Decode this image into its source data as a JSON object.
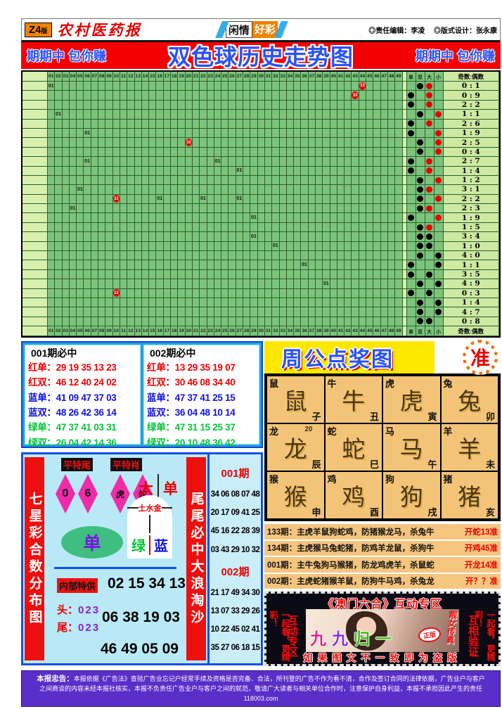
{
  "palette": {
    "banner_red": "#f40000",
    "title_blue": "#2a52f5",
    "grid_green": "#7cc47c",
    "grid_light": "#d8efad",
    "ball_red": "#e80000",
    "card_blue": "#2b9be8",
    "yellow": "#ffe800",
    "zodiac_tan": "#f3c478",
    "cyan": "#b9e9f6",
    "purple": "#5a2ec8",
    "pink": "#f02ba8"
  },
  "header": {
    "edition": "Z4",
    "edition_suffix": "版",
    "paper_name": "农村医药报",
    "center_left": "闲情",
    "center_right": "好彩",
    "editor": "◎责任编辑：李凌",
    "designer": "◎版式设计：张永康"
  },
  "banner": {
    "left": "期期中 包你赚",
    "title": "双色球历史走势图",
    "right": "期期中 包你赚"
  },
  "chart_data": {
    "type": "table",
    "title": "双色球历史走势图",
    "columns": [
      "01",
      "02",
      "03",
      "04",
      "05",
      "06",
      "07",
      "08",
      "09",
      "10",
      "11",
      "12",
      "13",
      "14",
      "15",
      "16",
      "17",
      "18",
      "19",
      "20",
      "21",
      "22",
      "23",
      "24",
      "25",
      "26",
      "27",
      "28",
      "29",
      "30",
      "31",
      "32",
      "33",
      "34",
      "35",
      "36",
      "37",
      "38",
      "39",
      "40",
      "41",
      "42",
      "43",
      "44",
      "45",
      "46",
      "47",
      "48",
      "49"
    ],
    "dot_headers": [
      "单",
      "双",
      "大",
      "小"
    ],
    "ratio_header": "奇数:偶数",
    "rows": [
      {
        "markers": [
          {
            "col": 1,
            "v": "01"
          },
          {
            "col": 44,
            "v": "33"
          }
        ],
        "odd_even": "双",
        "size": "大",
        "size_color": "red",
        "ratio": "0:1"
      },
      {
        "markers": [
          {
            "col": 43,
            "v": "33"
          }
        ],
        "odd_even": "单",
        "size": "大",
        "size_color": "red",
        "ratio": "0:9"
      },
      {
        "markers": [],
        "odd_even": "单",
        "size": "大",
        "size_color": "red",
        "ratio": "2:2"
      },
      {
        "markers": [
          {
            "col": 2,
            "v": "01"
          }
        ],
        "odd_even": "双",
        "size": "小",
        "size_color": "red",
        "ratio": "1:1"
      },
      {
        "markers": [],
        "odd_even": "单",
        "size": "大",
        "size_color": "red",
        "ratio": "2:6"
      },
      {
        "markers": [
          {
            "col": 6,
            "v": "01"
          }
        ],
        "odd_even": "单",
        "size": "小",
        "size_color": "red",
        "ratio": "1:9"
      },
      {
        "markers": [
          {
            "col": 20,
            "v": "33"
          }
        ],
        "odd_even": "双",
        "size": "小",
        "size_color": "red",
        "ratio": "2:5"
      },
      {
        "markers": [],
        "odd_even": "双",
        "size": "小",
        "size_color": "red",
        "ratio": "0:4"
      },
      {
        "markers": [
          {
            "col": 6,
            "v": "01"
          },
          {
            "col": 24,
            "v": "01"
          }
        ],
        "odd_even": "单",
        "size": "大",
        "size_color": "red",
        "ratio": "2:7"
      },
      {
        "markers": [
          {
            "col": 27,
            "v": "01"
          }
        ],
        "odd_even": "单",
        "size": "大",
        "size_color": "red",
        "ratio": "1:4"
      },
      {
        "markers": [],
        "odd_even": "双",
        "size": "小",
        "size_color": "red",
        "ratio": "1:2"
      },
      {
        "markers": [
          {
            "col": 5,
            "v": "01"
          }
        ],
        "odd_even": "双",
        "size": "大",
        "size_color": "red",
        "ratio": "3:1"
      },
      {
        "markers": [
          {
            "col": 10,
            "v": "33"
          },
          {
            "col": 16,
            "v": "01"
          },
          {
            "col": 22,
            "v": "01"
          },
          {
            "col": 27,
            "v": "01"
          }
        ],
        "odd_even": "双",
        "size": "小",
        "size_color": "red",
        "ratio": "2:2"
      },
      {
        "markers": [
          {
            "col": 4,
            "v": "01"
          }
        ],
        "odd_even": "双",
        "size": "大",
        "size_color": "red",
        "ratio": "2:3"
      },
      {
        "markers": [
          {
            "col": 29,
            "v": "01"
          }
        ],
        "odd_even": "单",
        "size": "小",
        "size_color": "red",
        "ratio": "1:9"
      },
      {
        "markers": [],
        "odd_even": "双",
        "size": "大",
        "size_color": "red",
        "ratio": "1:5"
      },
      {
        "markers": [
          {
            "col": 29,
            "v": "01"
          }
        ],
        "odd_even": "双",
        "size": "大",
        "size_color": "black",
        "ratio": "3:4"
      },
      {
        "markers": [
          {
            "col": 32,
            "v": "01"
          }
        ],
        "odd_even": "双",
        "size": "大",
        "size_color": "black",
        "ratio": "1:0"
      },
      {
        "markers": [],
        "odd_even": "双",
        "size": "小",
        "size_color": "black",
        "ratio": "4:0"
      },
      {
        "markers": [
          {
            "col": 36,
            "v": "01"
          }
        ],
        "odd_even": "单",
        "size": "小",
        "size_color": "black",
        "ratio": "1:1"
      },
      {
        "markers": [],
        "odd_even": "单",
        "size": "大",
        "size_color": "black",
        "ratio": "3:5"
      },
      {
        "markers": [
          {
            "col": 39,
            "v": "01"
          }
        ],
        "odd_even": "双",
        "size": "小",
        "size_color": "black",
        "ratio": "4:9"
      },
      {
        "markers": [
          {
            "col": 10,
            "v": "33"
          }
        ],
        "odd_even": "单",
        "size": "大",
        "size_color": "black",
        "ratio": "0:3"
      },
      {
        "markers": [],
        "odd_even": "双",
        "size": "小",
        "size_color": "black",
        "ratio": "1:4"
      },
      {
        "markers": [],
        "odd_even": "双",
        "size": "小",
        "size_color": "black",
        "ratio": "4:7"
      },
      {
        "markers": [],
        "odd_even": "双",
        "size": "大",
        "size_color": "black",
        "ratio": "0:8"
      }
    ]
  },
  "cards": [
    {
      "title": "001期必中",
      "lines": [
        {
          "label": "红单：",
          "nums": "29 19 35 13 23",
          "color": "red"
        },
        {
          "label": "红双：",
          "nums": "46 12 40 24 02",
          "color": "red"
        },
        {
          "label": "蓝单：",
          "nums": "41 09 47 37 03",
          "color": "blue"
        },
        {
          "label": "蓝双：",
          "nums": "48 26 42 36 14",
          "color": "blue"
        },
        {
          "label": "绿单：",
          "nums": "47 37 41 03 31",
          "color": "green"
        },
        {
          "label": "绿双：",
          "nums": "26 04 42 14 36",
          "color": "green"
        }
      ]
    },
    {
      "title": "002期必中",
      "lines": [
        {
          "label": "红单：",
          "nums": "13 29 35 19 07",
          "color": "red"
        },
        {
          "label": "红双：",
          "nums": "30 46 08 34 40",
          "color": "red"
        },
        {
          "label": "蓝单：",
          "nums": "47 37 41 25 15",
          "color": "blue"
        },
        {
          "label": "蓝双：",
          "nums": "36 04 48 10 14",
          "color": "blue"
        },
        {
          "label": "绿单：",
          "nums": "47 31 15 25 37",
          "color": "green"
        },
        {
          "label": "绿双：",
          "nums": "20 10 48 36 42",
          "color": "green"
        }
      ]
    }
  ],
  "zhougong": {
    "title": "周公点奖图",
    "badge": "准",
    "cells": [
      {
        "animal": "鼠",
        "branch": "子"
      },
      {
        "animal": "牛",
        "branch": "丑"
      },
      {
        "animal": "虎",
        "branch": "寅"
      },
      {
        "animal": "兔",
        "branch": "卯"
      },
      {
        "animal": "龙",
        "branch": "辰",
        "note": "20"
      },
      {
        "animal": "蛇",
        "branch": "巳"
      },
      {
        "animal": "马",
        "branch": "午"
      },
      {
        "animal": "羊",
        "branch": "未"
      },
      {
        "animal": "猴",
        "branch": "申"
      },
      {
        "animal": "鸡",
        "branch": "酉"
      },
      {
        "animal": "狗",
        "branch": "戌"
      },
      {
        "animal": "猪",
        "branch": "亥"
      }
    ]
  },
  "predictions": [
    {
      "period": "133期：",
      "text": "主虎羊鼠狗蛇鸡，防猪猴龙马，杀兔牛",
      "result": "开蛇13准"
    },
    {
      "period": "134期：",
      "text": "主虎猴马兔蛇猪，防鸡羊龙鼠，杀狗牛",
      "result": "开鸡45准"
    },
    {
      "period": "001期：",
      "text": "主牛兔狗马猴猪，防龙鸡虎羊，杀鼠蛇",
      "result": "开龙14准"
    },
    {
      "period": "002期：",
      "text": "主虎蛇猪猴羊鼠，防狗牛马鸡，杀兔龙",
      "result": "开？？准"
    }
  ],
  "qixing": {
    "left_banner": "七星彩合数分布图",
    "right_banner": "尾尾必中大浪淘沙",
    "tag1": "平特尾",
    "tag2": "平特肖",
    "diamonds": [
      "0",
      "6",
      "虎",
      "蛇"
    ],
    "big_pair": [
      "大",
      "单"
    ],
    "shield_top": "土水金",
    "shield_pair": [
      "绿",
      "蓝"
    ],
    "ellipse_char": "单",
    "special_label": "内部特供",
    "special_numbers": "02 15 34 13",
    "head_label": "头：",
    "head_value": "023",
    "tail_label": "尾：",
    "tail_value": "023",
    "numbers2": "06 38 19 03",
    "numbers3": "46 49 05 09"
  },
  "middle_column": {
    "groups": [
      {
        "title": "001期",
        "rows": [
          "34 06 08 07 48",
          "20 17 09 41 25",
          "45 16 22 28 39",
          "03 43 29 10 32"
        ]
      },
      {
        "title": "002期",
        "rows": [
          "21 17 49 34 30",
          "13 07 33 29 26",
          "10 22 45 02 41",
          "35 27 06 18 15"
        ]
      }
    ]
  },
  "macau": {
    "title": "《澳门六合》互动专区",
    "left_outer": "一起看，更精彩！",
    "left_inner": "互动专区",
    "right_inner": "互相验证",
    "right_outer": "一起看，更精彩！",
    "photo_text": "九九归一",
    "photo_text_colors": [
      "#e0218a",
      "#8a2be2",
      "#3cb818",
      "#52c41a"
    ],
    "photo_badge": "正版",
    "photo_caption": "靓女传真",
    "bottom_note": "如果图文不一致即为盗版"
  },
  "disclaimer": {
    "lead": "本报忠告：",
    "line1": "本报依据《广告法》查验广告业忘记户经常手续及资格是否完备、合法，所刊登的广告不作为看不清，合作及签订合同的法律依据，广告业户与客户",
    "line2": "之间商谈的内容未经本报社核实，本报不负责任广告业户与客户之间的就范，敬请广大读者与相关单位合作时，注意保护自身利益，本报不承担因此产生的责任118003.com"
  }
}
